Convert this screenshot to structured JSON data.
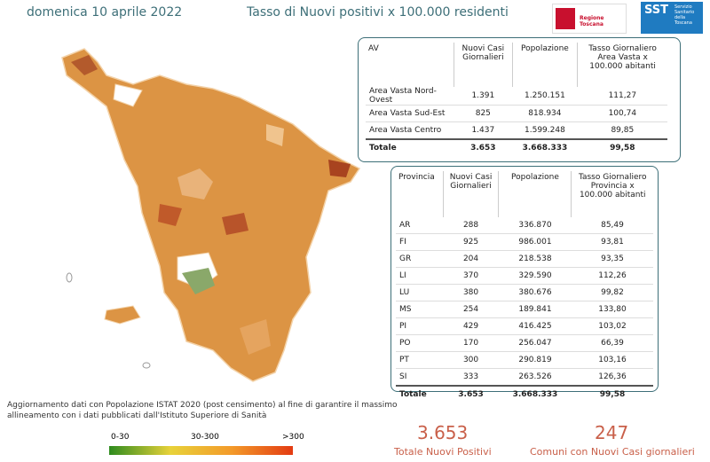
{
  "header": {
    "date": "domenica 10 aprile 2022",
    "title": "Tasso di Nuovi positivi x 100.000 residenti",
    "logo_rt": "Regione Toscana",
    "logo_sst": "SST",
    "logo_sst_sub": "Servizio Sanitario della Toscana"
  },
  "table_av": {
    "columns": [
      "AV",
      "Nuovi Casi Giornalieri",
      "Popolazione",
      "Tasso Giornaliero Area Vasta x 100.000 abitanti"
    ],
    "rows": [
      [
        "Area Vasta Nord-Ovest",
        "1.391",
        "1.250.151",
        "111,27"
      ],
      [
        "Area Vasta Sud-Est",
        "825",
        "818.934",
        "100,74"
      ],
      [
        "Area Vasta Centro",
        "1.437",
        "1.599.248",
        "89,85"
      ]
    ],
    "total": [
      "Totale",
      "3.653",
      "3.668.333",
      "99,58"
    ]
  },
  "table_prov": {
    "columns": [
      "Provincia",
      "Nuovi Casi Giornalieri",
      "Popolazione",
      "Tasso Giornaliero Provincia x 100.000 abitanti"
    ],
    "rows": [
      [
        "AR",
        "288",
        "336.870",
        "85,49"
      ],
      [
        "FI",
        "925",
        "986.001",
        "93,81"
      ],
      [
        "GR",
        "204",
        "218.538",
        "93,35"
      ],
      [
        "LI",
        "370",
        "329.590",
        "112,26"
      ],
      [
        "LU",
        "380",
        "380.676",
        "99,82"
      ],
      [
        "MS",
        "254",
        "189.841",
        "133,80"
      ],
      [
        "PI",
        "429",
        "416.425",
        "103,02"
      ],
      [
        "PO",
        "170",
        "256.047",
        "66,39"
      ],
      [
        "PT",
        "300",
        "290.819",
        "103,16"
      ],
      [
        "SI",
        "333",
        "263.526",
        "126,36"
      ]
    ],
    "total": [
      "Totale",
      "3.653",
      "3.668.333",
      "99,58"
    ]
  },
  "note": "Aggiornamento dati con Popolazione ISTAT 2020 (post censimento) al fine di garantire il massimo allineamento con i dati pubblicati dall'Istituto Superiore di Sanità",
  "legend": [
    "0-30",
    "30-300",
    ">300"
  ],
  "kpis": [
    {
      "value": "3.653",
      "label": "Totale Nuovi Positivi"
    },
    {
      "value": "247",
      "label": "Comuni con Nuovi Casi giornalieri"
    }
  ]
}
